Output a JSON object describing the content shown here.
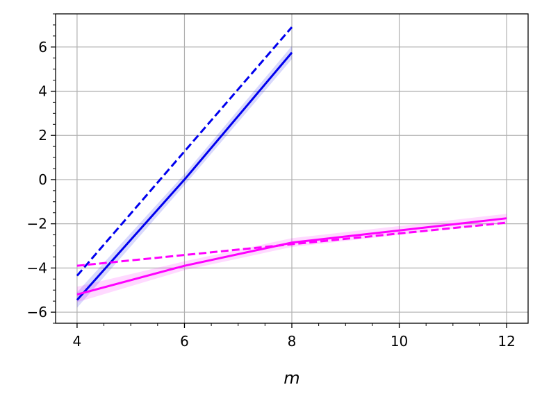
{
  "chart_data": {
    "type": "line",
    "title": "",
    "xlabel": "m",
    "ylabel": "",
    "xlim": [
      3.6,
      12.4
    ],
    "ylim": [
      -6.5,
      7.5
    ],
    "xticks": [
      4,
      6,
      8,
      10,
      12
    ],
    "yticks": [
      -6,
      -4,
      -2,
      0,
      2,
      4,
      6
    ],
    "xtick_labels": [
      "4",
      "6",
      "8",
      "10",
      "12"
    ],
    "ytick_labels": [
      "−6",
      "−4",
      "−2",
      "0",
      "2",
      "4",
      "6"
    ],
    "x_minor_step": 0.5,
    "y_minor_step": 0.5,
    "grid": true,
    "legend": "none",
    "series": [
      {
        "color": "#0000ee",
        "style": "solid",
        "x": [
          4,
          6,
          8
        ],
        "y": [
          -5.45,
          0.0,
          5.75
        ],
        "band_lower": [
          -5.8,
          -0.25,
          5.45
        ],
        "band_upper": [
          -5.1,
          0.25,
          6.05
        ]
      },
      {
        "color": "#0000ee",
        "style": "dashed",
        "x": [
          4,
          8
        ],
        "y": [
          -4.35,
          6.9
        ]
      },
      {
        "color": "#ff00ff",
        "style": "solid",
        "x": [
          4,
          6,
          8,
          10,
          12
        ],
        "y": [
          -5.2,
          -3.9,
          -2.85,
          -2.3,
          -1.75
        ],
        "band_lower": [
          -5.55,
          -4.1,
          -3.05,
          -2.5,
          -1.95
        ],
        "band_upper": [
          -4.85,
          -3.7,
          -2.65,
          -2.1,
          -1.55
        ]
      },
      {
        "color": "#ff00ff",
        "style": "dashed",
        "x": [
          4,
          12
        ],
        "y": [
          -3.9,
          -1.95
        ]
      }
    ]
  }
}
